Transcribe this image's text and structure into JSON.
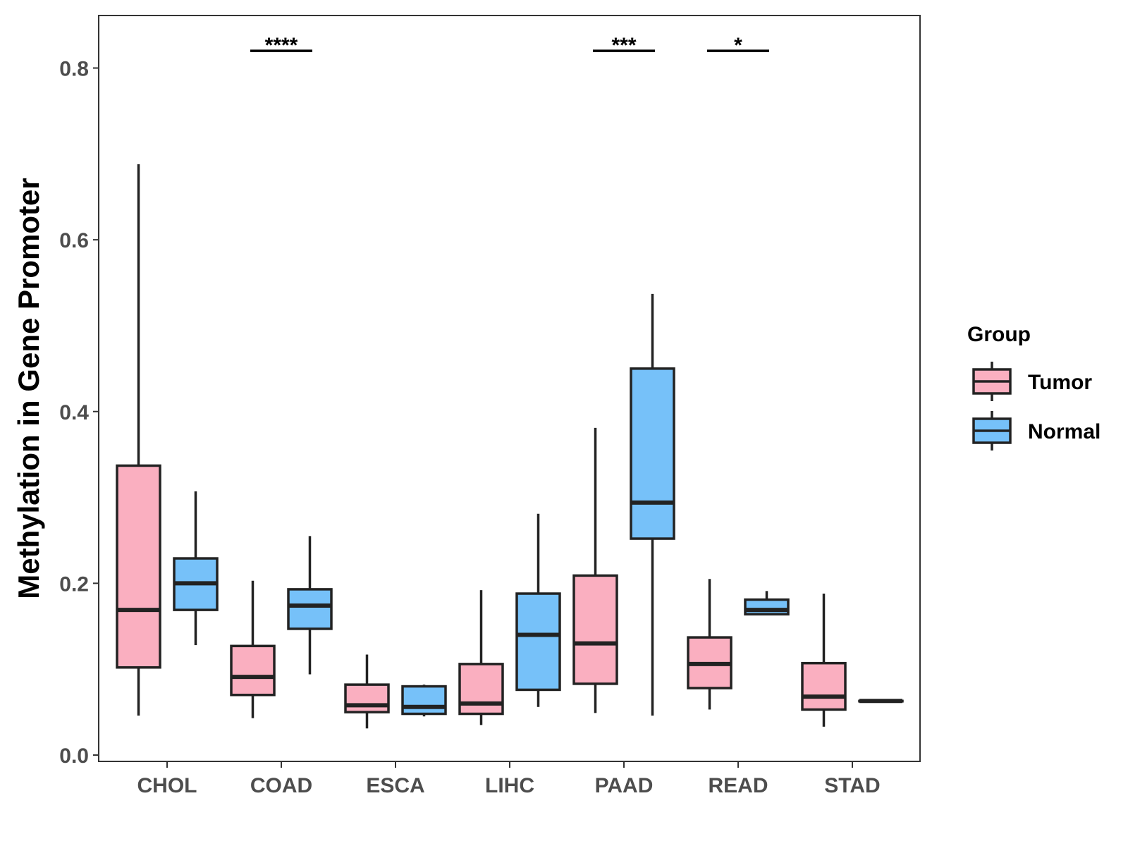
{
  "chart_data": {
    "type": "boxplot",
    "title": "",
    "xlabel": "",
    "ylabel": "Methylation in Gene Promoter",
    "ylim": [
      0,
      0.86
    ],
    "yticks": [
      0.0,
      0.2,
      0.4,
      0.6,
      0.8
    ],
    "ytick_labels": [
      "0.0",
      "0.2",
      "0.4",
      "0.6",
      "0.8"
    ],
    "categories": [
      "CHOL",
      "COAD",
      "ESCA",
      "LIHC",
      "PAAD",
      "READ",
      "STAD"
    ],
    "legend": {
      "title": "Group",
      "position": "right",
      "entries": [
        {
          "name": "Tumor",
          "color": "#FAAFC0"
        },
        {
          "name": "Normal",
          "color": "#76C1F9"
        }
      ]
    },
    "series": [
      {
        "name": "Tumor",
        "color": "#FAAFC0",
        "boxes": [
          {
            "category": "CHOL",
            "min": 0.046,
            "q1": 0.102,
            "median": 0.169,
            "q3": 0.337,
            "max": 0.688
          },
          {
            "category": "COAD",
            "min": 0.043,
            "q1": 0.07,
            "median": 0.091,
            "q3": 0.127,
            "max": 0.203
          },
          {
            "category": "ESCA",
            "min": 0.031,
            "q1": 0.05,
            "median": 0.058,
            "q3": 0.082,
            "max": 0.117
          },
          {
            "category": "LIHC",
            "min": 0.035,
            "q1": 0.048,
            "median": 0.06,
            "q3": 0.106,
            "max": 0.192
          },
          {
            "category": "PAAD",
            "min": 0.049,
            "q1": 0.083,
            "median": 0.13,
            "q3": 0.209,
            "max": 0.381
          },
          {
            "category": "READ",
            "min": 0.053,
            "q1": 0.078,
            "median": 0.106,
            "q3": 0.137,
            "max": 0.205
          },
          {
            "category": "STAD",
            "min": 0.033,
            "q1": 0.053,
            "median": 0.068,
            "q3": 0.107,
            "max": 0.188
          }
        ]
      },
      {
        "name": "Normal",
        "color": "#76C1F9",
        "boxes": [
          {
            "category": "CHOL",
            "min": 0.128,
            "q1": 0.169,
            "median": 0.2,
            "q3": 0.229,
            "max": 0.307
          },
          {
            "category": "COAD",
            "min": 0.094,
            "q1": 0.147,
            "median": 0.174,
            "q3": 0.193,
            "max": 0.255
          },
          {
            "category": "ESCA",
            "min": 0.045,
            "q1": 0.048,
            "median": 0.056,
            "q3": 0.08,
            "max": 0.082
          },
          {
            "category": "LIHC",
            "min": 0.056,
            "q1": 0.076,
            "median": 0.14,
            "q3": 0.188,
            "max": 0.281
          },
          {
            "category": "PAAD",
            "min": 0.046,
            "q1": 0.252,
            "median": 0.294,
            "q3": 0.45,
            "max": 0.537
          },
          {
            "category": "READ",
            "min": 0.163,
            "q1": 0.164,
            "median": 0.169,
            "q3": 0.181,
            "max": 0.191
          },
          {
            "category": "STAD",
            "min": 0.063,
            "q1": 0.063,
            "median": 0.063,
            "q3": 0.063,
            "max": 0.063
          }
        ]
      }
    ],
    "significance": [
      {
        "category": "COAD",
        "label": "****",
        "y": 0.82
      },
      {
        "category": "PAAD",
        "label": "***",
        "y": 0.82
      },
      {
        "category": "READ",
        "label": "*",
        "y": 0.82
      }
    ]
  }
}
